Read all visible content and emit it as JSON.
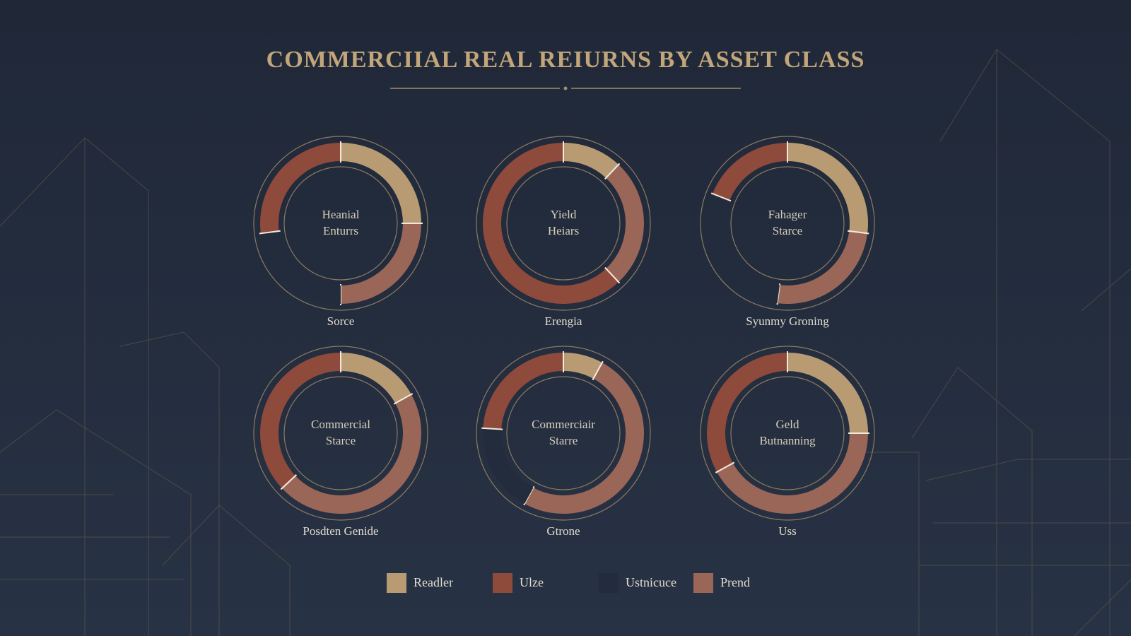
{
  "title": "COMMERCIIAL REAL REIURNS BY ASSET CLASS",
  "legend": [
    {
      "name": "Readler",
      "color": "#b89b72"
    },
    {
      "name": "Ulze",
      "color": "#8e4a3b"
    },
    {
      "name": "Ustnicuce",
      "color": "#232c3d"
    },
    {
      "name": "Prend",
      "color": "#9a6657"
    }
  ],
  "chart_data": [
    {
      "type": "pie",
      "center_label": [
        "Heanial",
        "Enturrs"
      ],
      "label": "Sorce",
      "values": [
        25,
        27,
        23,
        25
      ]
    },
    {
      "type": "pie",
      "center_label": [
        "Yield",
        "Heiars"
      ],
      "label": "Erengia",
      "values": [
        12,
        62,
        0,
        26
      ]
    },
    {
      "type": "pie",
      "center_label": [
        "Fahager",
        "Starce"
      ],
      "label": "Syunmy Groning",
      "values": [
        27,
        19,
        29,
        25
      ]
    },
    {
      "type": "pie",
      "center_label": [
        "Commercial",
        "Starce"
      ],
      "label": "Posdten Genide",
      "values": [
        17,
        37,
        0,
        46
      ]
    },
    {
      "type": "pie",
      "center_label": [
        "Commerciair",
        "Starre"
      ],
      "label": "Gtrone",
      "values": [
        8,
        24,
        18,
        50
      ]
    },
    {
      "type": "pie",
      "center_label": [
        "Geld",
        "Butnanning"
      ],
      "label": "Uss",
      "values": [
        25,
        33,
        0,
        42
      ]
    }
  ]
}
